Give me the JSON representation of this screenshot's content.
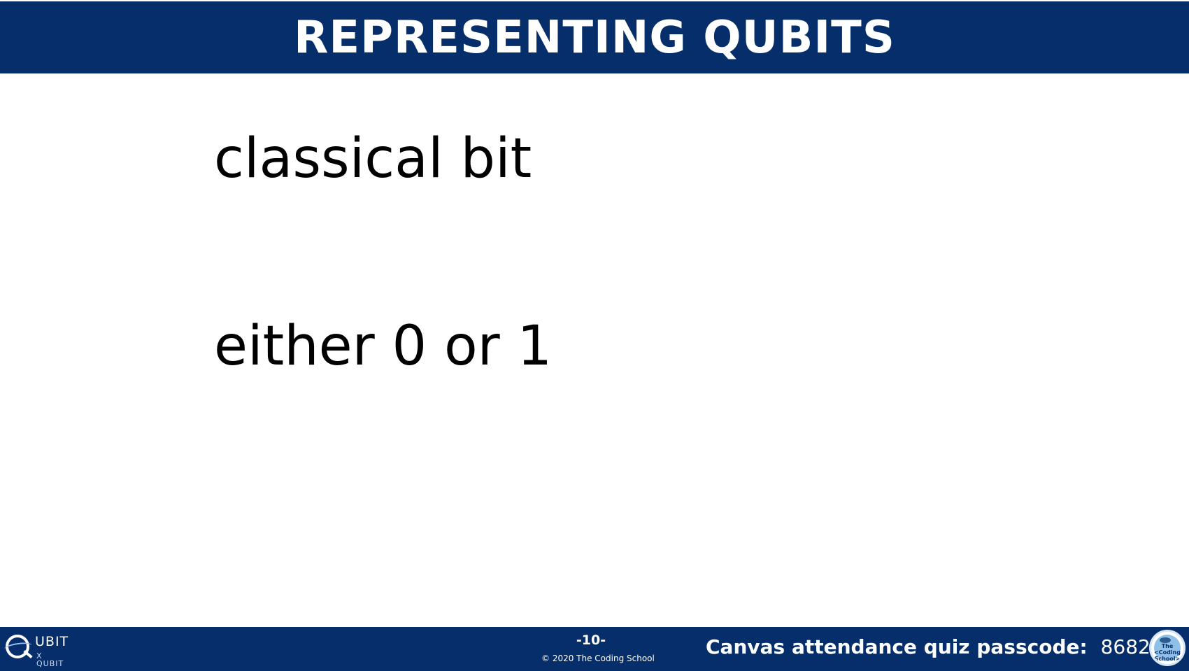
{
  "slide": {
    "title": "REPRESENTING QUBITS",
    "body_lines": [
      "classical bit",
      "either 0 or 1"
    ]
  },
  "footer": {
    "logo_left": {
      "icon": "qubit-by-qubit-logo",
      "text_top": "UBIT",
      "text_bottom": "X QUBIT"
    },
    "page_number": "-10-",
    "copyright": "© 2020 The Coding School",
    "passcode_label": "Canvas attendance quiz passcode:",
    "passcode_value": "8682",
    "logo_right": {
      "icon": "the-coding-school-logo",
      "text": "The <Coding School>"
    }
  },
  "colors": {
    "bar_background": "#062e6a",
    "bar_text": "#ffffff",
    "body_text": "#000000",
    "page_background": "#ffffff"
  }
}
